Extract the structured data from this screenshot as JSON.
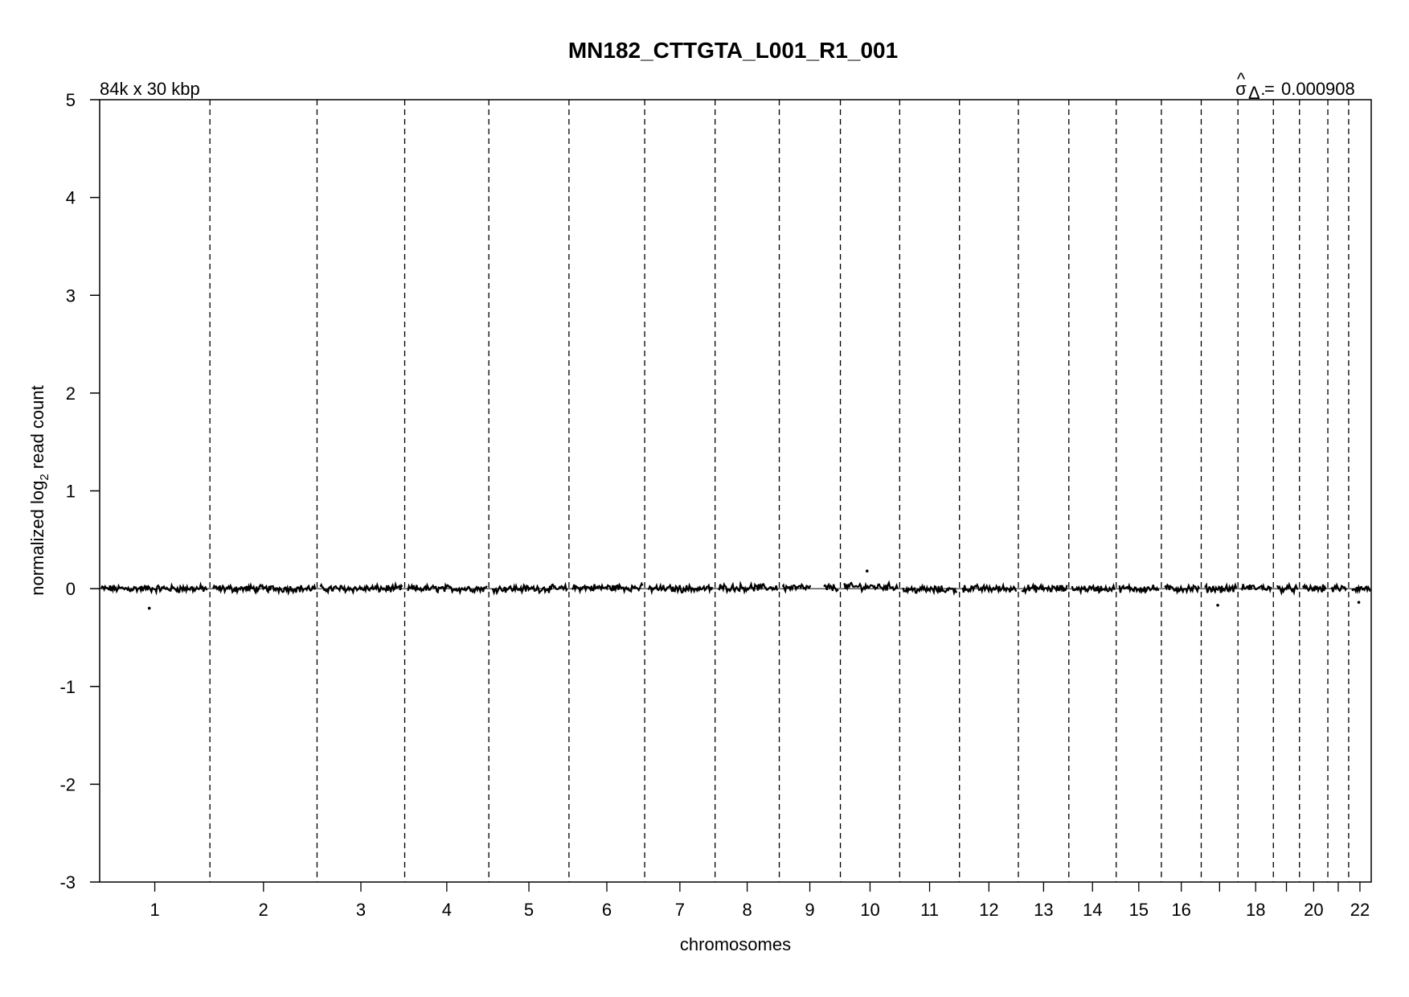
{
  "chart_data": {
    "type": "scatter",
    "title": "MN182_CTTGTA_L001_R1_001",
    "subtitle_left": "84k x 30 kbp",
    "sigma_label": {
      "symbol": "σ",
      "hat": "^",
      "subscript": "Δ·",
      "equals": "=",
      "value": "0.000908"
    },
    "xlabel": "chromosomes",
    "ylabel": {
      "prefix": "normalized log",
      "subscript": "2",
      "suffix": " read count"
    },
    "ylim": [
      -3,
      5
    ],
    "y_ticks": [
      "-3",
      "-2",
      "-1",
      "0",
      "1",
      "2",
      "3",
      "4",
      "5"
    ],
    "grid": false,
    "chromosome_lengths_mbp": [
      249,
      242,
      198,
      190,
      181,
      171,
      159,
      145,
      138,
      134,
      135,
      133,
      114,
      107,
      102,
      90,
      83,
      80,
      59,
      64,
      47,
      51
    ],
    "x_tick_labels": [
      "1",
      "2",
      "3",
      "4",
      "5",
      "6",
      "7",
      "8",
      "9",
      "10",
      "11",
      "12",
      "13",
      "14",
      "15",
      "16",
      "",
      "18",
      "",
      "20",
      "",
      "22"
    ],
    "baseline_log2": 0,
    "data_gaps_chromosomes": [
      "9"
    ],
    "series": [
      {
        "points_per_chromosome_mean_log2": [
          0.0,
          0.0,
          0.0,
          0.0,
          0.0,
          0.01,
          0.0,
          0.01,
          0.01,
          0.02,
          -0.01,
          0.0,
          0.0,
          0.0,
          0.0,
          0.0,
          0.0,
          0.01,
          0.0,
          0.0,
          0.0,
          0.0
        ],
        "noise_amplitude_log2": 0.03,
        "outliers": [
          {
            "chromosome": "1",
            "log2": -0.2
          },
          {
            "chromosome": "10",
            "log2": 0.18
          },
          {
            "chromosome": "17",
            "log2": -0.17
          },
          {
            "chromosome": "22",
            "log2": -0.14
          }
        ]
      }
    ]
  }
}
